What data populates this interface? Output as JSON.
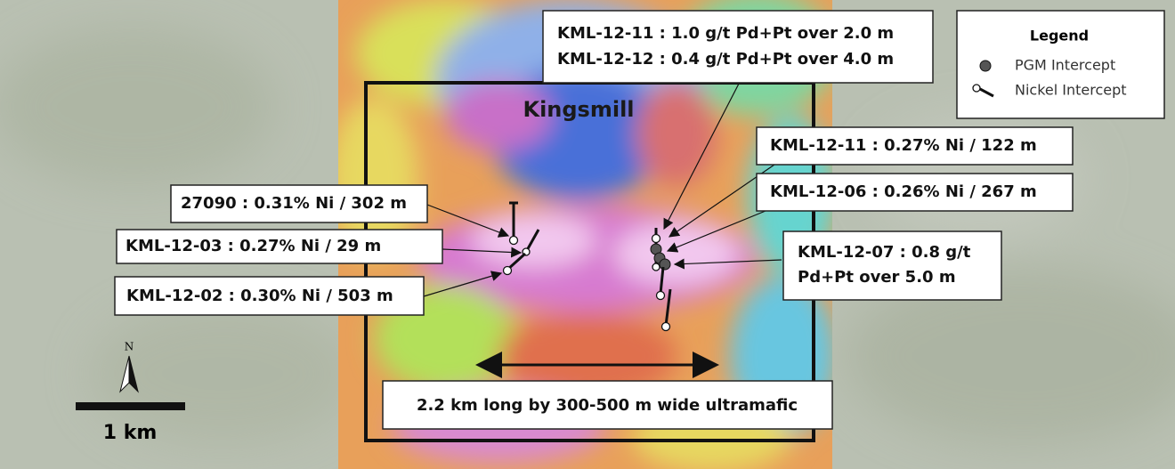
{
  "map": {
    "title": "Kingsmill",
    "legend": {
      "title": "Legend",
      "items": [
        "PGM Intercept",
        "Nickel Intercept"
      ]
    },
    "callouts": [
      {
        "lines": [
          "KML-12-11 : 1.0 g/t Pd+Pt over 2.0 m",
          "KML-12-12 : 0.4 g/t Pd+Pt over 4.0 m"
        ]
      },
      {
        "lines": [
          "KML-12-11 : 0.27% Ni / 122 m"
        ]
      },
      {
        "lines": [
          "KML-12-06 : 0.26% Ni / 267 m"
        ]
      },
      {
        "lines": [
          "27090 : 0.31% Ni / 302 m"
        ]
      },
      {
        "lines": [
          "KML-12-03 : 0.27% Ni / 29 m"
        ]
      },
      {
        "lines": [
          "KML-12-02 : 0.30% Ni / 503 m"
        ]
      },
      {
        "lines": [
          "KML-12-07 : 0.8 g/t",
          "Pd+Pt over 5.0 m"
        ]
      }
    ],
    "note": "2.2 km long by 300-500 m wide ultramafic",
    "north": "N",
    "scale": "1 km"
  }
}
